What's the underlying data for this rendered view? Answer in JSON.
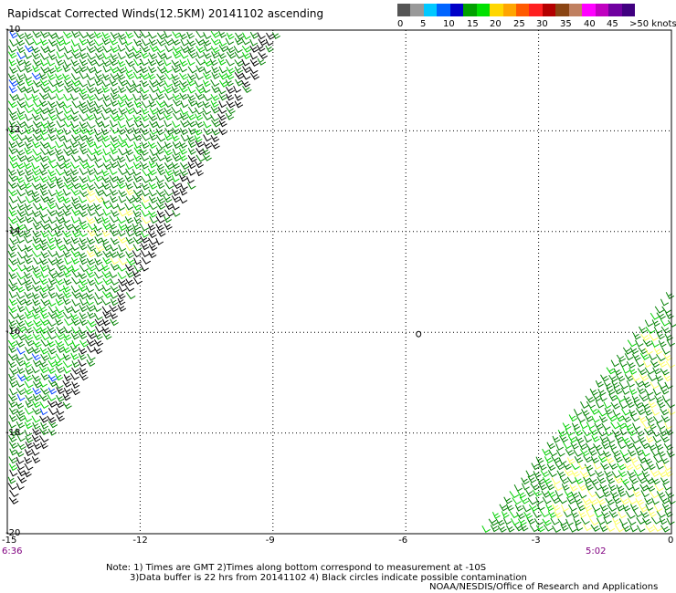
{
  "title": "Rapidscat Corrected Winds(12.5KM) 20141102 ascending",
  "legend": {
    "colors": [
      "#555555",
      "#999999",
      "#00c8ff",
      "#0064ff",
      "#0000c8",
      "#00a000",
      "#00e000",
      "#ffd700",
      "#ffa500",
      "#ff5a00",
      "#ff2020",
      "#b40000",
      "#8b4513",
      "#c08060",
      "#ff00ff",
      "#c000c0",
      "#7000a0",
      "#400080"
    ],
    "labels": [
      "0",
      "5",
      "10",
      "15",
      "20",
      "25",
      "30",
      "35",
      "40",
      "45",
      ">50 knots"
    ]
  },
  "axes": {
    "lat_labels": [
      "-10",
      "-12",
      "-14",
      "-16",
      "-18",
      "-20"
    ],
    "lon_labels": [
      "-15",
      "-12",
      "-9",
      "-6",
      "-3",
      "0"
    ],
    "lat_range": [
      -20,
      -10
    ],
    "lon_range": [
      -15,
      0
    ]
  },
  "times": {
    "left": "6:36",
    "right": "5:02"
  },
  "notes": {
    "line1": "Note: 1) Times are GMT 2)Times along bottom correspond to measurement at -10S",
    "line2": "3)Data buffer is 22 hrs from 20141102 4) Black circles indicate possible contamination"
  },
  "credit": "NOAA/NESDIS/Office of Research and Applications",
  "contamination_marker": {
    "lat": -16,
    "lon": -6
  },
  "swaths": {
    "west": {
      "edge_lon_at_lat_-10": -8.9,
      "edge_lon_at_lat_-19.5": -15
    },
    "east": {
      "edge_lon_at_lat_-15": 0,
      "edge_lon_at_lat_-19.8": -4.3
    }
  },
  "colors": {
    "grid": "#000000",
    "barb_green_dark": "#008000",
    "barb_green_light": "#00d000",
    "barb_yellow": "#ffff60",
    "barb_blue": "#0040ff",
    "barb_black": "#000000",
    "time_color": "#800080"
  }
}
